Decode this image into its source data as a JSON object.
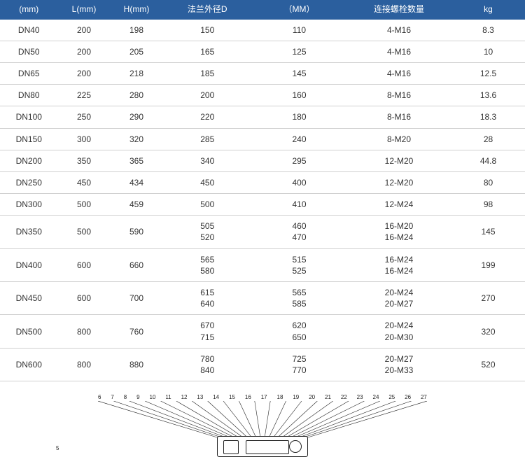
{
  "table": {
    "header_bg": "#2b5f9e",
    "header_color": "#ffffff",
    "row_border": "#d0d0d0",
    "cell_color": "#333333",
    "columns": [
      {
        "label": "(mm)",
        "width": "11%"
      },
      {
        "label": "L(mm)",
        "width": "10%"
      },
      {
        "label": "H(mm)",
        "width": "10%"
      },
      {
        "label": "法兰外径D",
        "width": "17%"
      },
      {
        "label": "（MM）",
        "width": "18%"
      },
      {
        "label": "连接螺栓数量",
        "width": "20%"
      },
      {
        "label": "kg",
        "width": "14%"
      }
    ],
    "rows": [
      [
        "DN40",
        "200",
        "198",
        "150",
        "110",
        "4-M16",
        "8.3"
      ],
      [
        "DN50",
        "200",
        "205",
        "165",
        "125",
        "4-M16",
        "10"
      ],
      [
        "DN65",
        "200",
        "218",
        "185",
        "145",
        "4-M16",
        "12.5"
      ],
      [
        "DN80",
        "225",
        "280",
        "200",
        "160",
        "8-M16",
        "13.6"
      ],
      [
        "DN100",
        "250",
        "290",
        "220",
        "180",
        "8-M16",
        "18.3"
      ],
      [
        "DN150",
        "300",
        "320",
        "285",
        "240",
        "8-M20",
        "28"
      ],
      [
        "DN200",
        "350",
        "365",
        "340",
        "295",
        "12-M20",
        "44.8"
      ],
      [
        "DN250",
        "450",
        "434",
        "450",
        "400",
        "12-M20",
        "80"
      ],
      [
        "DN300",
        "500",
        "459",
        "500",
        "410",
        "12-M24",
        "98"
      ],
      [
        "DN350",
        "500",
        "590",
        "505\n520",
        "460\n470",
        "16-M20\n16-M24",
        "145"
      ],
      [
        "DN400",
        "600",
        "660",
        "565\n580",
        "515\n525",
        "16-M24\n16-M24",
        "199"
      ],
      [
        "DN450",
        "600",
        "700",
        "615\n640",
        "565\n585",
        "20-M24\n20-M27",
        "270"
      ],
      [
        "DN500",
        "800",
        "760",
        "670\n715",
        "620\n650",
        "20-M24\n20-M30",
        "320"
      ],
      [
        "DN600",
        "800",
        "880",
        "780\n840",
        "725\n770",
        "20-M27\n20-M33",
        "520"
      ]
    ]
  },
  "diagram": {
    "callouts": [
      "6",
      "7",
      "8",
      "9",
      "10",
      "11",
      "12",
      "13",
      "14",
      "15",
      "16",
      "17",
      "18",
      "19",
      "20",
      "21",
      "22",
      "23",
      "24",
      "25",
      "26",
      "27"
    ],
    "side_left": "5"
  }
}
